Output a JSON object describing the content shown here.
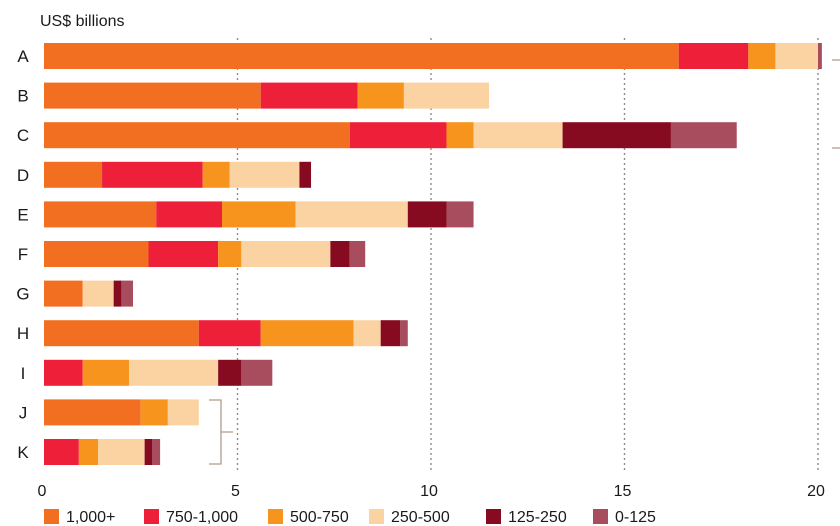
{
  "chart_data": {
    "type": "bar",
    "orientation": "horizontal",
    "stacked": true,
    "unit_label": "US$ billions",
    "xlim": [
      0,
      20
    ],
    "x_ticks": [
      "0",
      "5",
      "10",
      "15",
      "20"
    ],
    "grid": true,
    "legend_position": "bottom",
    "categories": [
      "A",
      "B",
      "C",
      "D",
      "E",
      "F",
      "G",
      "H",
      "I",
      "J",
      "K"
    ],
    "series": [
      {
        "name": "1,000+",
        "color": "#f26f21",
        "values": [
          16.4,
          5.6,
          7.9,
          1.5,
          2.9,
          2.7,
          1.0,
          4.0,
          0.0,
          2.5,
          0.0
        ]
      },
      {
        "name": "750-1,000",
        "color": "#ee2039",
        "values": [
          1.8,
          2.5,
          2.5,
          2.6,
          1.7,
          1.8,
          0.0,
          1.6,
          1.0,
          0.0,
          0.9
        ]
      },
      {
        "name": "500-750",
        "color": "#f7941d",
        "values": [
          0.7,
          1.2,
          0.7,
          0.7,
          1.9,
          0.6,
          0.0,
          2.4,
          1.2,
          0.7,
          0.5
        ]
      },
      {
        "name": "250-500",
        "color": "#fbd3a3",
        "values": [
          1.1,
          2.2,
          2.3,
          1.8,
          2.9,
          2.3,
          0.8,
          0.7,
          2.3,
          0.8,
          1.2
        ]
      },
      {
        "name": "125-250",
        "color": "#870b20",
        "values": [
          0.0,
          0.0,
          2.8,
          0.3,
          1.0,
          0.5,
          0.2,
          0.5,
          0.6,
          0.0,
          0.2
        ]
      },
      {
        "name": "0-125",
        "color": "#a84d5e",
        "values": [
          0.1,
          0.0,
          1.7,
          0.0,
          0.7,
          0.4,
          0.3,
          0.2,
          0.8,
          0.0,
          0.2
        ]
      }
    ]
  }
}
